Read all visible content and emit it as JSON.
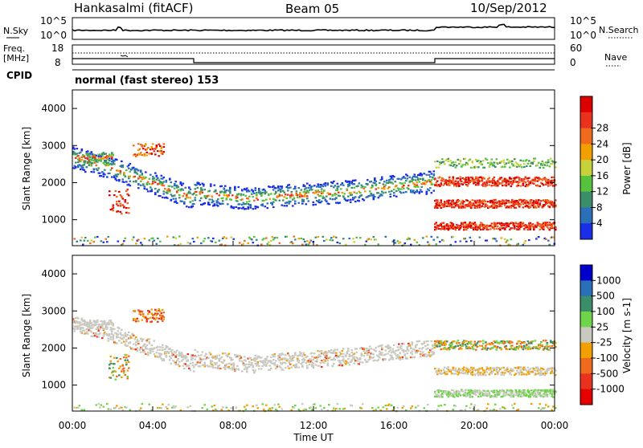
{
  "header": {
    "station": "Hankasalmi (fitACF)",
    "beam": "Beam 05",
    "date": "10/Sep/2012"
  },
  "top_panels": {
    "nsky_label": "N.Sky",
    "nsky_axis": [
      "10^5",
      "10^0"
    ],
    "nsearch_label": "N.Search",
    "freq_label_line1": "Freq.",
    "freq_label_line2": "[MHz]",
    "freq_axis": [
      "18",
      "8"
    ],
    "nave_label": "Nave",
    "nave_axis": [
      "60",
      "0"
    ],
    "cpid_label": "CPID",
    "cpid_text": "normal (fast stereo) 153"
  },
  "colors": {
    "power_scale": [
      "#1a2ee8",
      "#2a6fb8",
      "#3c8e6a",
      "#57c23e",
      "#c7d23a",
      "#f2a000",
      "#f06a1e",
      "#e8321e",
      "#dc0000"
    ],
    "velocity_scale": [
      "#0000cc",
      "#2a6fb8",
      "#3c8e6a",
      "#6fd44a",
      "#c9c9c0",
      "#f2a000",
      "#f06a1e",
      "#e8321e",
      "#e60000"
    ],
    "ground_scatter": "#c9c9c0"
  },
  "chart_data": [
    {
      "type": "heatmap",
      "panel": "power",
      "xlabel": "Time UT",
      "ylabel": "Slant Range [km]",
      "x_ticks": [
        "00:00",
        "04:00",
        "08:00",
        "12:00",
        "16:00",
        "20:00",
        "00:00"
      ],
      "y_ticks": [
        1000,
        2000,
        3000,
        4000
      ],
      "ylim": [
        300,
        4500
      ],
      "colorbar": {
        "title": "Power [dB]",
        "ticks": [
          4,
          8,
          12,
          16,
          20,
          24,
          28
        ]
      }
    },
    {
      "type": "heatmap",
      "panel": "velocity",
      "xlabel": "Time UT",
      "ylabel": "Slant Range [km]",
      "x_ticks": [
        "00:00",
        "04:00",
        "08:00",
        "12:00",
        "16:00",
        "20:00",
        "00:00"
      ],
      "y_ticks": [
        1000,
        2000,
        3000,
        4000
      ],
      "ylim": [
        300,
        4500
      ],
      "colorbar": {
        "title": "Velocity [m s-1]",
        "ticks": [
          1000,
          500,
          100,
          25,
          -25,
          -100,
          -500,
          -1000
        ]
      }
    }
  ]
}
